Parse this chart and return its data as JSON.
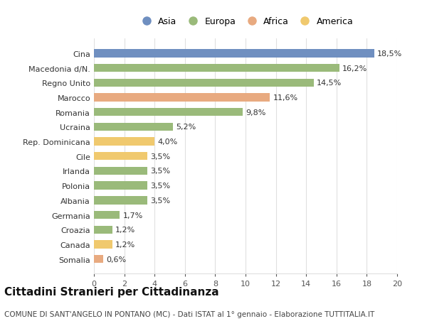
{
  "categories": [
    "Cina",
    "Macedonia d/N.",
    "Regno Unito",
    "Marocco",
    "Romania",
    "Ucraina",
    "Rep. Dominicana",
    "Cile",
    "Irlanda",
    "Polonia",
    "Albania",
    "Germania",
    "Croazia",
    "Canada",
    "Somalia"
  ],
  "values": [
    18.5,
    16.2,
    14.5,
    11.6,
    9.8,
    5.2,
    4.0,
    3.5,
    3.5,
    3.5,
    3.5,
    1.7,
    1.2,
    1.2,
    0.6
  ],
  "colors": [
    "#6f8fc0",
    "#9aba7a",
    "#9aba7a",
    "#e8aa80",
    "#9aba7a",
    "#9aba7a",
    "#f0c96e",
    "#f0c96e",
    "#9aba7a",
    "#9aba7a",
    "#9aba7a",
    "#9aba7a",
    "#9aba7a",
    "#f0c96e",
    "#e8aa80"
  ],
  "labels": [
    "18,5%",
    "16,2%",
    "14,5%",
    "11,6%",
    "9,8%",
    "5,2%",
    "4,0%",
    "3,5%",
    "3,5%",
    "3,5%",
    "3,5%",
    "1,7%",
    "1,2%",
    "1,2%",
    "0,6%"
  ],
  "legend_labels": [
    "Asia",
    "Europa",
    "Africa",
    "America"
  ],
  "legend_colors": [
    "#6f8fc0",
    "#9aba7a",
    "#e8aa80",
    "#f0c96e"
  ],
  "title": "Cittadini Stranieri per Cittadinanza",
  "subtitle": "COMUNE DI SANT'ANGELO IN PONTANO (MC) - Dati ISTAT al 1° gennaio - Elaborazione TUTTITALIA.IT",
  "xlim": [
    0,
    20
  ],
  "xticks": [
    0,
    2,
    4,
    6,
    8,
    10,
    12,
    14,
    16,
    18,
    20
  ],
  "background_color": "#ffffff",
  "grid_color": "#e0e0e0",
  "bar_height": 0.55,
  "title_fontsize": 11,
  "subtitle_fontsize": 7.5,
  "label_fontsize": 8,
  "tick_fontsize": 8,
  "legend_fontsize": 9,
  "value_fontsize": 8
}
